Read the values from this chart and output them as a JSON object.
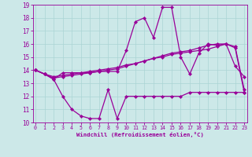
{
  "xlabel": "Windchill (Refroidissement éolien,°C)",
  "x": [
    0,
    1,
    2,
    3,
    4,
    5,
    6,
    7,
    8,
    9,
    10,
    11,
    12,
    13,
    14,
    15,
    16,
    17,
    18,
    19,
    20,
    21,
    22,
    23
  ],
  "line_bottom": [
    14.0,
    13.7,
    13.3,
    12.0,
    11.0,
    10.5,
    10.3,
    10.3,
    12.5,
    10.3,
    12.0,
    12.0,
    12.0,
    12.0,
    12.0,
    12.0,
    12.0,
    12.3,
    12.3,
    12.3,
    12.3,
    12.3,
    12.3,
    12.3
  ],
  "line_spiky": [
    14.0,
    13.7,
    13.3,
    13.8,
    13.8,
    13.8,
    13.8,
    13.9,
    13.9,
    13.9,
    15.5,
    17.7,
    18.0,
    16.5,
    18.8,
    18.8,
    15.0,
    13.7,
    15.3,
    16.0,
    15.9,
    16.0,
    14.3,
    13.5
  ],
  "line_smooth1": [
    14.0,
    13.7,
    13.4,
    13.5,
    13.6,
    13.7,
    13.8,
    13.9,
    14.0,
    14.1,
    14.3,
    14.5,
    14.7,
    14.9,
    15.1,
    15.3,
    15.4,
    15.5,
    15.7,
    15.9,
    16.0,
    16.0,
    15.8,
    12.5
  ],
  "line_smooth2": [
    14.0,
    13.7,
    13.5,
    13.6,
    13.7,
    13.8,
    13.9,
    14.0,
    14.1,
    14.2,
    14.4,
    14.5,
    14.7,
    14.9,
    15.0,
    15.2,
    15.3,
    15.4,
    15.5,
    15.6,
    15.8,
    16.0,
    15.7,
    12.3
  ],
  "bg_color": "#cce8e8",
  "line_color": "#990099",
  "grid_color": "#aad4d4",
  "ylim": [
    10,
    19
  ],
  "yticks": [
    10,
    11,
    12,
    13,
    14,
    15,
    16,
    17,
    18,
    19
  ],
  "xticks": [
    0,
    1,
    2,
    3,
    4,
    5,
    6,
    7,
    8,
    9,
    10,
    11,
    12,
    13,
    14,
    15,
    16,
    17,
    18,
    19,
    20,
    21,
    22,
    23
  ],
  "xlim": [
    -0.3,
    23.3
  ]
}
